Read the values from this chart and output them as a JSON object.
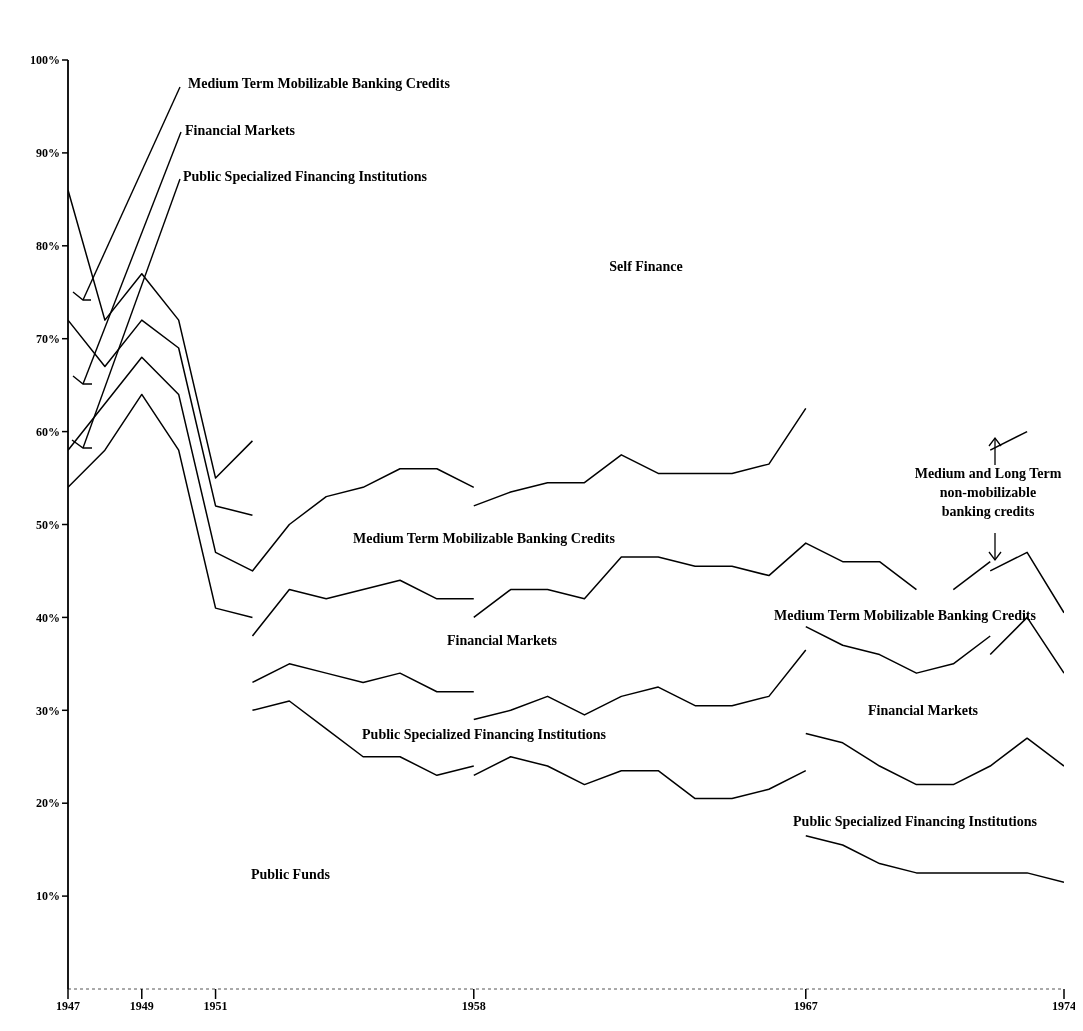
{
  "chart_data": {
    "type": "line",
    "xlim": [
      1947,
      1974
    ],
    "xticks": [
      1947,
      1949,
      1951,
      1958,
      1967,
      1974
    ],
    "ylim": [
      0,
      100
    ],
    "yticks": [
      {
        "value": 10,
        "label": "10%"
      },
      {
        "value": 20,
        "label": "20%"
      },
      {
        "value": 30,
        "label": "30%"
      },
      {
        "value": 40,
        "label": "40%"
      },
      {
        "value": 50,
        "label": "50%"
      },
      {
        "value": 60,
        "label": "60%"
      },
      {
        "value": 70,
        "label": "70%"
      },
      {
        "value": 80,
        "label": "80%"
      },
      {
        "value": 90,
        "label": "90%"
      },
      {
        "value": 100,
        "label": "100%"
      }
    ],
    "grid": false,
    "legend": false,
    "series": [
      {
        "color": "#000000",
        "x": [
          1947,
          1948,
          1949,
          1950,
          1951,
          1952
        ],
        "values": [
          86,
          72,
          77,
          72,
          55,
          59
        ]
      },
      {
        "color": "#000000",
        "x": [
          1947,
          1948,
          1949,
          1950,
          1951,
          1952
        ],
        "values": [
          72,
          67,
          72,
          69,
          52,
          51
        ]
      },
      {
        "color": "#000000",
        "x": [
          1947,
          1948,
          1949,
          1950,
          1951,
          1952,
          1953,
          1954,
          1955,
          1956,
          1957,
          1958
        ],
        "values": [
          58,
          63,
          68,
          64,
          47,
          45,
          50,
          53,
          54,
          56,
          56,
          54
        ]
      },
      {
        "color": "#000000",
        "x": [
          1947,
          1948,
          1949,
          1950,
          1951,
          1952
        ],
        "values": [
          54,
          58,
          64,
          58,
          41,
          40
        ]
      },
      {
        "color": "#000000",
        "x": [
          1952,
          1953,
          1954,
          1955,
          1956,
          1957,
          1958
        ],
        "values": [
          38,
          43,
          42,
          43,
          44,
          42,
          42
        ]
      },
      {
        "color": "#000000",
        "x": [
          1952,
          1953,
          1954,
          1955,
          1956,
          1957,
          1958
        ],
        "values": [
          33,
          35,
          34,
          33,
          34,
          32,
          32
        ]
      },
      {
        "color": "#000000",
        "x": [
          1952,
          1953,
          1954,
          1955,
          1956,
          1957,
          1958
        ],
        "values": [
          30,
          31,
          28,
          25,
          25,
          23,
          24
        ]
      },
      {
        "color": "#000000",
        "x": [
          1958,
          1959,
          1960,
          1961,
          1962,
          1963,
          1964,
          1965,
          1966,
          1967
        ],
        "values": [
          52,
          53.5,
          54.5,
          54.5,
          57.5,
          55.5,
          55.5,
          55.5,
          56.5,
          62.5
        ]
      },
      {
        "color": "#000000",
        "x": [
          1958,
          1959,
          1960,
          1961,
          1962,
          1963,
          1964,
          1965,
          1966,
          1967,
          1968,
          1969,
          1970
        ],
        "values": [
          40,
          43,
          43,
          42,
          46.5,
          46.5,
          45.5,
          45.5,
          44.5,
          48,
          46,
          46,
          43
        ]
      },
      {
        "color": "#000000",
        "x": [
          1971,
          1972
        ],
        "values": [
          43,
          46
        ]
      },
      {
        "color": "#000000",
        "x": [
          1972,
          1973,
          1974
        ],
        "values": [
          45,
          47,
          40.5
        ]
      },
      {
        "color": "#000000",
        "x": [
          1972,
          1973
        ],
        "values": [
          58,
          60
        ]
      },
      {
        "color": "#000000",
        "x": [
          1958,
          1959,
          1960,
          1961,
          1962,
          1963,
          1964,
          1965,
          1966,
          1967
        ],
        "values": [
          29,
          30,
          31.5,
          29.5,
          31.5,
          32.5,
          30.5,
          30.5,
          31.5,
          36.5
        ]
      },
      {
        "color": "#000000",
        "x": [
          1958,
          1959,
          1960,
          1961,
          1962,
          1963,
          1964,
          1965,
          1966,
          1967
        ],
        "values": [
          23,
          25,
          24,
          22,
          23.5,
          23.5,
          20.5,
          20.5,
          21.5,
          23.5
        ]
      },
      {
        "color": "#000000",
        "x": [
          1967,
          1968,
          1969,
          1970,
          1971,
          1972
        ],
        "values": [
          39,
          37,
          36,
          34,
          35,
          38
        ]
      },
      {
        "color": "#000000",
        "x": [
          1972,
          1973,
          1974
        ],
        "values": [
          36,
          40,
          34
        ]
      },
      {
        "color": "#000000",
        "x": [
          1967,
          1968,
          1969,
          1970,
          1971,
          1972,
          1973,
          1974
        ],
        "values": [
          27.5,
          26.5,
          24,
          22,
          22,
          24,
          27,
          24
        ]
      },
      {
        "color": "#000000",
        "x": [
          1967,
          1968,
          1969,
          1970,
          1971,
          1972,
          1973,
          1974
        ],
        "values": [
          16.5,
          15.5,
          13.5,
          12.5,
          12.5,
          12.5,
          12.5,
          11.5
        ]
      }
    ],
    "annotations": [
      "Medium Term Mobilizable Banking Credits",
      "Financial Markets",
      "Public Specialized Financing Institutions",
      "Self Finance",
      "Medium Term Mobilizable Banking Credits",
      "Financial Markets",
      "Public Specialized Financing Institutions",
      "Public Funds",
      "Medium and Long Term\nnon-mobilizable\nbanking credits",
      "Medium Term Mobilizable Banking Credits",
      "Financial Markets",
      "Public Specialized Financing Institutions"
    ]
  }
}
